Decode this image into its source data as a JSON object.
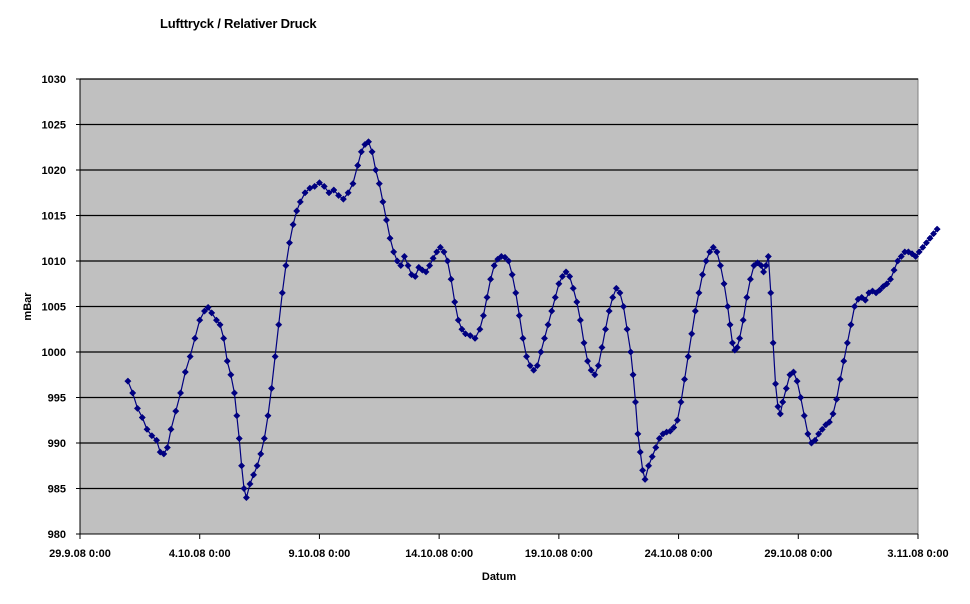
{
  "chart_data": {
    "type": "line",
    "title": "Lufttryck / Relativer Druck",
    "xlabel": "Datum",
    "ylabel": "mBar",
    "ylim": [
      980,
      1030
    ],
    "yticks": [
      980,
      985,
      990,
      995,
      1000,
      1005,
      1010,
      1015,
      1020,
      1025,
      1030
    ],
    "xlim_days": [
      0,
      35
    ],
    "xticks": [
      {
        "day": 0,
        "label": "29.9.08 0:00"
      },
      {
        "day": 5,
        "label": "4.10.08 0:00"
      },
      {
        "day": 10,
        "label": "9.10.08 0:00"
      },
      {
        "day": 15,
        "label": "14.10.08 0:00"
      },
      {
        "day": 20,
        "label": "19.10.08 0:00"
      },
      {
        "day": 25,
        "label": "24.10.08 0:00"
      },
      {
        "day": 30,
        "label": "29.10.08 0:00"
      },
      {
        "day": 35,
        "label": "3.11.08 0:00"
      }
    ],
    "grid": "horizontal",
    "plot_background": "#c0c0c0",
    "series": [
      {
        "name": "",
        "color": "#000080",
        "marker": "diamond",
        "points": [
          [
            2.0,
            996.8
          ],
          [
            2.2,
            995.5
          ],
          [
            2.4,
            993.8
          ],
          [
            2.6,
            992.8
          ],
          [
            2.8,
            991.5
          ],
          [
            3.0,
            990.8
          ],
          [
            3.2,
            990.3
          ],
          [
            3.35,
            989.0
          ],
          [
            3.5,
            988.8
          ],
          [
            3.65,
            989.5
          ],
          [
            3.8,
            991.5
          ],
          [
            4.0,
            993.5
          ],
          [
            4.2,
            995.5
          ],
          [
            4.4,
            997.8
          ],
          [
            4.6,
            999.5
          ],
          [
            4.8,
            1001.5
          ],
          [
            5.0,
            1003.5
          ],
          [
            5.2,
            1004.5
          ],
          [
            5.35,
            1004.9
          ],
          [
            5.5,
            1004.3
          ],
          [
            5.7,
            1003.5
          ],
          [
            5.85,
            1003.0
          ],
          [
            6.0,
            1001.5
          ],
          [
            6.15,
            999.0
          ],
          [
            6.3,
            997.5
          ],
          [
            6.45,
            995.5
          ],
          [
            6.55,
            993.0
          ],
          [
            6.65,
            990.5
          ],
          [
            6.75,
            987.5
          ],
          [
            6.85,
            985.0
          ],
          [
            6.95,
            984.0
          ],
          [
            7.1,
            985.5
          ],
          [
            7.25,
            986.5
          ],
          [
            7.4,
            987.5
          ],
          [
            7.55,
            988.8
          ],
          [
            7.7,
            990.5
          ],
          [
            7.85,
            993.0
          ],
          [
            8.0,
            996.0
          ],
          [
            8.15,
            999.5
          ],
          [
            8.3,
            1003.0
          ],
          [
            8.45,
            1006.5
          ],
          [
            8.6,
            1009.5
          ],
          [
            8.75,
            1012.0
          ],
          [
            8.9,
            1014.0
          ],
          [
            9.05,
            1015.5
          ],
          [
            9.2,
            1016.5
          ],
          [
            9.4,
            1017.5
          ],
          [
            9.6,
            1018.0
          ],
          [
            9.8,
            1018.2
          ],
          [
            10.0,
            1018.6
          ],
          [
            10.2,
            1018.2
          ],
          [
            10.4,
            1017.5
          ],
          [
            10.6,
            1017.8
          ],
          [
            10.8,
            1017.2
          ],
          [
            11.0,
            1016.8
          ],
          [
            11.2,
            1017.5
          ],
          [
            11.4,
            1018.5
          ],
          [
            11.6,
            1020.5
          ],
          [
            11.75,
            1022.0
          ],
          [
            11.9,
            1022.8
          ],
          [
            12.05,
            1023.1
          ],
          [
            12.2,
            1022.0
          ],
          [
            12.35,
            1020.0
          ],
          [
            12.5,
            1018.5
          ],
          [
            12.65,
            1016.5
          ],
          [
            12.8,
            1014.5
          ],
          [
            12.95,
            1012.5
          ],
          [
            13.1,
            1011.0
          ],
          [
            13.25,
            1010.0
          ],
          [
            13.4,
            1009.5
          ],
          [
            13.55,
            1010.5
          ],
          [
            13.7,
            1009.5
          ],
          [
            13.85,
            1008.5
          ],
          [
            14.0,
            1008.3
          ],
          [
            14.15,
            1009.3
          ],
          [
            14.3,
            1009.0
          ],
          [
            14.45,
            1008.8
          ],
          [
            14.6,
            1009.5
          ],
          [
            14.75,
            1010.3
          ],
          [
            14.9,
            1011.0
          ],
          [
            15.05,
            1011.5
          ],
          [
            15.2,
            1011.0
          ],
          [
            15.35,
            1010.0
          ],
          [
            15.5,
            1008.0
          ],
          [
            15.65,
            1005.5
          ],
          [
            15.8,
            1003.5
          ],
          [
            15.95,
            1002.5
          ],
          [
            16.1,
            1002.0
          ],
          [
            16.3,
            1001.8
          ],
          [
            16.5,
            1001.5
          ],
          [
            16.7,
            1002.5
          ],
          [
            16.85,
            1004.0
          ],
          [
            17.0,
            1006.0
          ],
          [
            17.15,
            1008.0
          ],
          [
            17.3,
            1009.5
          ],
          [
            17.45,
            1010.2
          ],
          [
            17.6,
            1010.5
          ],
          [
            17.75,
            1010.4
          ],
          [
            17.9,
            1010.0
          ],
          [
            18.05,
            1008.5
          ],
          [
            18.2,
            1006.5
          ],
          [
            18.35,
            1004.0
          ],
          [
            18.5,
            1001.5
          ],
          [
            18.65,
            999.5
          ],
          [
            18.8,
            998.5
          ],
          [
            18.95,
            998.0
          ],
          [
            19.1,
            998.5
          ],
          [
            19.25,
            1000.0
          ],
          [
            19.4,
            1001.5
          ],
          [
            19.55,
            1003.0
          ],
          [
            19.7,
            1004.5
          ],
          [
            19.85,
            1006.0
          ],
          [
            20.0,
            1007.5
          ],
          [
            20.15,
            1008.3
          ],
          [
            20.3,
            1008.8
          ],
          [
            20.45,
            1008.3
          ],
          [
            20.6,
            1007.0
          ],
          [
            20.75,
            1005.5
          ],
          [
            20.9,
            1003.5
          ],
          [
            21.05,
            1001.0
          ],
          [
            21.2,
            999.0
          ],
          [
            21.35,
            998.0
          ],
          [
            21.5,
            997.5
          ],
          [
            21.65,
            998.5
          ],
          [
            21.8,
            1000.5
          ],
          [
            21.95,
            1002.5
          ],
          [
            22.1,
            1004.5
          ],
          [
            22.25,
            1006.0
          ],
          [
            22.4,
            1007.0
          ],
          [
            22.55,
            1006.5
          ],
          [
            22.7,
            1005.0
          ],
          [
            22.85,
            1002.5
          ],
          [
            23.0,
            1000.0
          ],
          [
            23.1,
            997.5
          ],
          [
            23.2,
            994.5
          ],
          [
            23.3,
            991.0
          ],
          [
            23.4,
            989.0
          ],
          [
            23.5,
            987.0
          ],
          [
            23.6,
            986.0
          ],
          [
            23.75,
            987.5
          ],
          [
            23.9,
            988.5
          ],
          [
            24.05,
            989.5
          ],
          [
            24.2,
            990.5
          ],
          [
            24.35,
            991.0
          ],
          [
            24.5,
            991.2
          ],
          [
            24.65,
            991.3
          ],
          [
            24.8,
            991.7
          ],
          [
            24.95,
            992.5
          ],
          [
            25.1,
            994.5
          ],
          [
            25.25,
            997.0
          ],
          [
            25.4,
            999.5
          ],
          [
            25.55,
            1002.0
          ],
          [
            25.7,
            1004.5
          ],
          [
            25.85,
            1006.5
          ],
          [
            26.0,
            1008.5
          ],
          [
            26.15,
            1010.0
          ],
          [
            26.3,
            1011.0
          ],
          [
            26.45,
            1011.5
          ],
          [
            26.6,
            1011.0
          ],
          [
            26.75,
            1009.5
          ],
          [
            26.9,
            1007.5
          ],
          [
            27.05,
            1005.0
          ],
          [
            27.15,
            1003.0
          ],
          [
            27.25,
            1001.0
          ],
          [
            27.35,
            1000.2
          ],
          [
            27.45,
            1000.5
          ],
          [
            27.55,
            1001.5
          ],
          [
            27.7,
            1003.5
          ],
          [
            27.85,
            1006.0
          ],
          [
            28.0,
            1008.0
          ],
          [
            28.15,
            1009.5
          ],
          [
            28.3,
            1009.8
          ],
          [
            28.45,
            1009.5
          ],
          [
            28.55,
            1008.8
          ],
          [
            28.65,
            1009.5
          ],
          [
            28.75,
            1010.5
          ],
          [
            28.85,
            1006.5
          ],
          [
            28.95,
            1001.0
          ],
          [
            29.05,
            996.5
          ],
          [
            29.15,
            994.0
          ],
          [
            29.25,
            993.2
          ],
          [
            29.35,
            994.5
          ],
          [
            29.5,
            996.0
          ],
          [
            29.65,
            997.5
          ],
          [
            29.8,
            997.8
          ],
          [
            29.95,
            996.8
          ],
          [
            30.1,
            995.0
          ],
          [
            30.25,
            993.0
          ],
          [
            30.4,
            991.0
          ],
          [
            30.55,
            990.0
          ],
          [
            30.7,
            990.3
          ],
          [
            30.85,
            991.0
          ],
          [
            31.0,
            991.5
          ],
          [
            31.15,
            992.0
          ],
          [
            31.3,
            992.3
          ],
          [
            31.45,
            993.2
          ],
          [
            31.6,
            994.8
          ],
          [
            31.75,
            997.0
          ],
          [
            31.9,
            999.0
          ],
          [
            32.05,
            1001.0
          ],
          [
            32.2,
            1003.0
          ],
          [
            32.35,
            1005.0
          ],
          [
            32.5,
            1005.8
          ],
          [
            32.65,
            1006.0
          ],
          [
            32.8,
            1005.7
          ],
          [
            32.95,
            1006.5
          ],
          [
            33.1,
            1006.7
          ],
          [
            33.25,
            1006.5
          ],
          [
            33.4,
            1006.8
          ],
          [
            33.55,
            1007.2
          ],
          [
            33.7,
            1007.5
          ],
          [
            33.85,
            1008.0
          ],
          [
            34.0,
            1009.0
          ],
          [
            34.15,
            1010.0
          ],
          [
            34.3,
            1010.5
          ],
          [
            34.45,
            1011.0
          ],
          [
            34.6,
            1011.0
          ],
          [
            34.75,
            1010.8
          ],
          [
            34.9,
            1010.5
          ],
          [
            35.05,
            1011.0
          ],
          [
            35.2,
            1011.5
          ],
          [
            35.35,
            1012.0
          ],
          [
            35.5,
            1012.5
          ],
          [
            35.65,
            1013.0
          ],
          [
            35.8,
            1013.5
          ]
        ]
      }
    ]
  }
}
